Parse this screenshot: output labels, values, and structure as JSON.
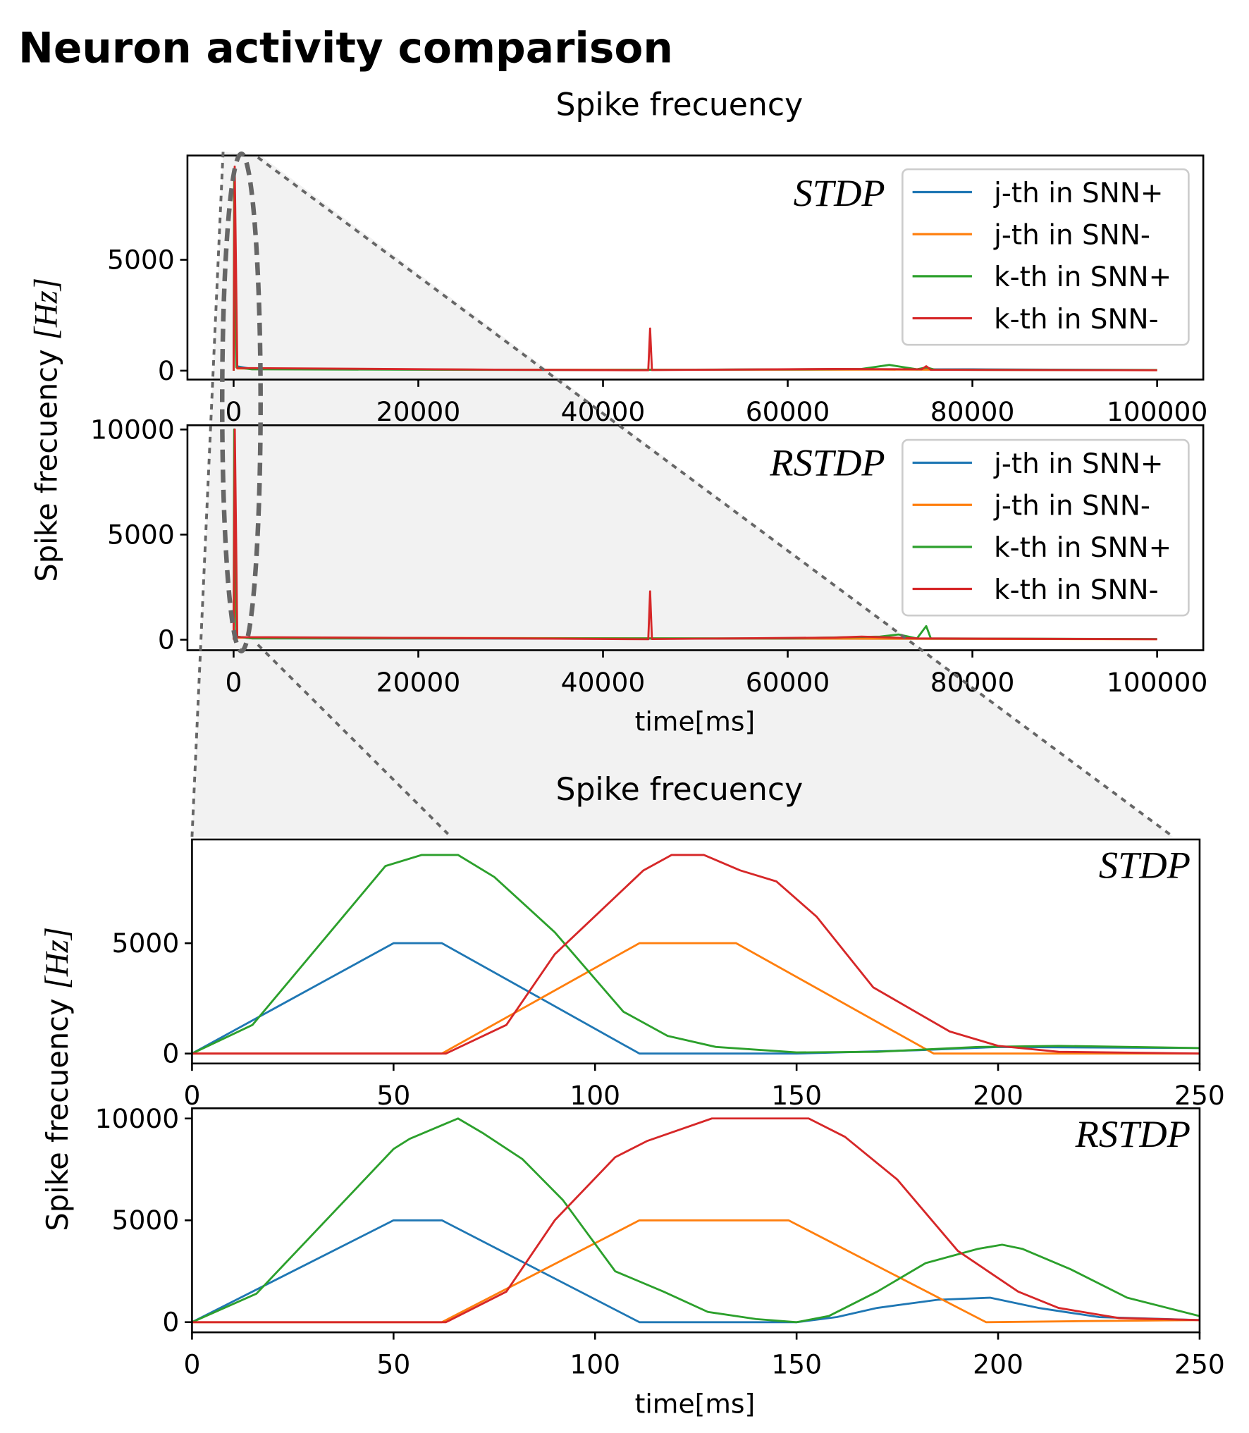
{
  "page_title": "Neuron activity comparison",
  "colors": {
    "j_plus": "#1f77b4",
    "j_minus": "#ff7f0e",
    "k_plus": "#2ca02c",
    "k_minus": "#d62728"
  },
  "chart_data": [
    {
      "type": "line",
      "group": "overview",
      "title": "Spike frecuency",
      "label": "STDP",
      "xlabel": "",
      "ylabel": "Spike frecuency [Hz]",
      "xlim": [
        -5000,
        105000
      ],
      "ylim": [
        -400,
        9700
      ],
      "xticks": [
        0,
        20000,
        40000,
        60000,
        80000,
        100000
      ],
      "yticks": [
        0,
        5000
      ],
      "legend": [
        "j-th in SNN+",
        "j-th in SNN-",
        "k-th in SNN+",
        "k-th in SNN-"
      ],
      "legend_position": "top-right",
      "series": [
        {
          "name": "j-th in SNN+",
          "color": "#1f77b4",
          "points": [
            [
              0,
              0
            ],
            [
              100,
              5000
            ],
            [
              300,
              200
            ],
            [
              2000,
              80
            ],
            [
              30000,
              40
            ],
            [
              60000,
              50
            ],
            [
              80000,
              60
            ],
            [
              100000,
              30
            ]
          ]
        },
        {
          "name": "j-th in SNN-",
          "color": "#ff7f0e",
          "points": [
            [
              0,
              0
            ],
            [
              150,
              5000
            ],
            [
              400,
              100
            ],
            [
              30000,
              40
            ],
            [
              70000,
              50
            ],
            [
              100000,
              20
            ]
          ]
        },
        {
          "name": "k-th in SNN+",
          "color": "#2ca02c",
          "points": [
            [
              0,
              0
            ],
            [
              60,
              9000
            ],
            [
              300,
              150
            ],
            [
              2000,
              60
            ],
            [
              40000,
              30
            ],
            [
              60000,
              60
            ],
            [
              68000,
              80
            ],
            [
              71000,
              260
            ],
            [
              74000,
              60
            ],
            [
              75000,
              150
            ],
            [
              76000,
              40
            ],
            [
              100000,
              30
            ]
          ]
        },
        {
          "name": "k-th in SNN-",
          "color": "#d62728",
          "points": [
            [
              0,
              0
            ],
            [
              120,
              9200
            ],
            [
              400,
              120
            ],
            [
              30000,
              40
            ],
            [
              44900,
              20
            ],
            [
              45100,
              1900
            ],
            [
              45300,
              30
            ],
            [
              65000,
              80
            ],
            [
              74500,
              60
            ],
            [
              75000,
              200
            ],
            [
              75500,
              40
            ],
            [
              100000,
              20
            ]
          ]
        }
      ]
    },
    {
      "type": "line",
      "group": "overview",
      "label": "RSTDP",
      "xlabel": "time[ms]",
      "ylabel": "Spike frecuency [Hz]",
      "xlim": [
        -5000,
        105000
      ],
      "ylim": [
        -500,
        10200
      ],
      "xticks": [
        0,
        20000,
        40000,
        60000,
        80000,
        100000
      ],
      "yticks": [
        0,
        5000,
        10000
      ],
      "legend": [
        "j-th in SNN+",
        "j-th in SNN-",
        "k-th in SNN+",
        "k-th in SNN-"
      ],
      "legend_position": "top-right",
      "series": [
        {
          "name": "j-th in SNN+",
          "color": "#1f77b4",
          "points": [
            [
              0,
              0
            ],
            [
              100,
              5000
            ],
            [
              300,
              150
            ],
            [
              2000,
              60
            ],
            [
              60000,
              50
            ],
            [
              100000,
              30
            ]
          ]
        },
        {
          "name": "j-th in SNN-",
          "color": "#ff7f0e",
          "points": [
            [
              0,
              0
            ],
            [
              150,
              5000
            ],
            [
              400,
              100
            ],
            [
              100000,
              20
            ]
          ]
        },
        {
          "name": "k-th in SNN+",
          "color": "#2ca02c",
          "points": [
            [
              0,
              0
            ],
            [
              60,
              10000
            ],
            [
              300,
              150
            ],
            [
              2000,
              60
            ],
            [
              60000,
              60
            ],
            [
              70000,
              150
            ],
            [
              72000,
              250
            ],
            [
              74000,
              60
            ],
            [
              75000,
              650
            ],
            [
              75500,
              60
            ],
            [
              100000,
              30
            ]
          ]
        },
        {
          "name": "k-th in SNN-",
          "color": "#d62728",
          "points": [
            [
              0,
              0
            ],
            [
              130,
              10000
            ],
            [
              400,
              120
            ],
            [
              30000,
              60
            ],
            [
              44900,
              20
            ],
            [
              45100,
              2300
            ],
            [
              45300,
              30
            ],
            [
              65000,
              100
            ],
            [
              68000,
              150
            ],
            [
              74000,
              60
            ],
            [
              100000,
              20
            ]
          ]
        }
      ]
    },
    {
      "type": "line",
      "group": "zoom",
      "title": "Spike frecuency",
      "label": "STDP",
      "xlabel": "",
      "ylabel": "Spike frecuency [Hz]",
      "xlim": [
        0,
        250
      ],
      "ylim": [
        -450,
        9700
      ],
      "xticks": [
        0,
        50,
        100,
        150,
        200,
        250
      ],
      "yticks": [
        0,
        5000
      ],
      "series": [
        {
          "name": "j-th in SNN+",
          "color": "#1f77b4",
          "points": [
            [
              0,
              0
            ],
            [
              50,
              5000
            ],
            [
              62,
              5000
            ],
            [
              111,
              0
            ],
            [
              150,
              0
            ],
            [
              180,
              150
            ],
            [
              200,
              300
            ],
            [
              250,
              250
            ]
          ]
        },
        {
          "name": "j-th in SNN-",
          "color": "#ff7f0e",
          "points": [
            [
              0,
              0
            ],
            [
              62,
              0
            ],
            [
              111,
              5000
            ],
            [
              135,
              5000
            ],
            [
              184,
              0
            ],
            [
              250,
              0
            ]
          ]
        },
        {
          "name": "k-th in SNN+",
          "color": "#2ca02c",
          "points": [
            [
              0,
              0
            ],
            [
              15,
              1300
            ],
            [
              48,
              8500
            ],
            [
              57,
              9000
            ],
            [
              66,
              9000
            ],
            [
              75,
              8000
            ],
            [
              90,
              5500
            ],
            [
              107,
              1900
            ],
            [
              118,
              800
            ],
            [
              130,
              300
            ],
            [
              150,
              50
            ],
            [
              170,
              80
            ],
            [
              195,
              300
            ],
            [
              215,
              350
            ],
            [
              250,
              250
            ]
          ]
        },
        {
          "name": "k-th in SNN-",
          "color": "#d62728",
          "points": [
            [
              0,
              0
            ],
            [
              63,
              0
            ],
            [
              78,
              1300
            ],
            [
              90,
              4500
            ],
            [
              112,
              8300
            ],
            [
              119,
              9000
            ],
            [
              127,
              9000
            ],
            [
              136,
              8300
            ],
            [
              145,
              7800
            ],
            [
              155,
              6200
            ],
            [
              169,
              3000
            ],
            [
              188,
              1000
            ],
            [
              200,
              350
            ],
            [
              215,
              80
            ],
            [
              250,
              0
            ]
          ]
        }
      ]
    },
    {
      "type": "line",
      "group": "zoom",
      "label": "RSTDP",
      "xlabel": "time[ms]",
      "ylabel": "Spike frecuency [Hz]",
      "xlim": [
        0,
        250
      ],
      "ylim": [
        -500,
        10500
      ],
      "xticks": [
        0,
        50,
        100,
        150,
        200,
        250
      ],
      "yticks": [
        0,
        5000,
        10000
      ],
      "series": [
        {
          "name": "j-th in SNN+",
          "color": "#1f77b4",
          "points": [
            [
              0,
              0
            ],
            [
              50,
              5000
            ],
            [
              62,
              5000
            ],
            [
              111,
              0
            ],
            [
              150,
              0
            ],
            [
              160,
              250
            ],
            [
              170,
              700
            ],
            [
              185,
              1100
            ],
            [
              198,
              1200
            ],
            [
              210,
              700
            ],
            [
              225,
              250
            ],
            [
              250,
              100
            ]
          ]
        },
        {
          "name": "j-th in SNN-",
          "color": "#ff7f0e",
          "points": [
            [
              0,
              0
            ],
            [
              62,
              0
            ],
            [
              111,
              5000
            ],
            [
              148,
              5000
            ],
            [
              197,
              0
            ],
            [
              220,
              50
            ],
            [
              250,
              100
            ]
          ]
        },
        {
          "name": "k-th in SNN+",
          "color": "#2ca02c",
          "points": [
            [
              0,
              0
            ],
            [
              16,
              1400
            ],
            [
              50,
              8500
            ],
            [
              54,
              9000
            ],
            [
              66,
              10000
            ],
            [
              72,
              9300
            ],
            [
              82,
              8000
            ],
            [
              92,
              6000
            ],
            [
              105,
              2500
            ],
            [
              117,
              1500
            ],
            [
              128,
              500
            ],
            [
              140,
              150
            ],
            [
              150,
              0
            ],
            [
              158,
              300
            ],
            [
              170,
              1500
            ],
            [
              182,
              2900
            ],
            [
              195,
              3600
            ],
            [
              201,
              3800
            ],
            [
              206,
              3600
            ],
            [
              218,
              2600
            ],
            [
              232,
              1200
            ],
            [
              250,
              300
            ]
          ]
        },
        {
          "name": "k-th in SNN-",
          "color": "#d62728",
          "points": [
            [
              0,
              0
            ],
            [
              63,
              0
            ],
            [
              78,
              1500
            ],
            [
              90,
              5000
            ],
            [
              105,
              8100
            ],
            [
              113,
              8900
            ],
            [
              129,
              10000
            ],
            [
              153,
              10000
            ],
            [
              162,
              9100
            ],
            [
              175,
              7000
            ],
            [
              190,
              3500
            ],
            [
              205,
              1500
            ],
            [
              215,
              700
            ],
            [
              230,
              200
            ],
            [
              250,
              100
            ]
          ]
        }
      ]
    }
  ]
}
